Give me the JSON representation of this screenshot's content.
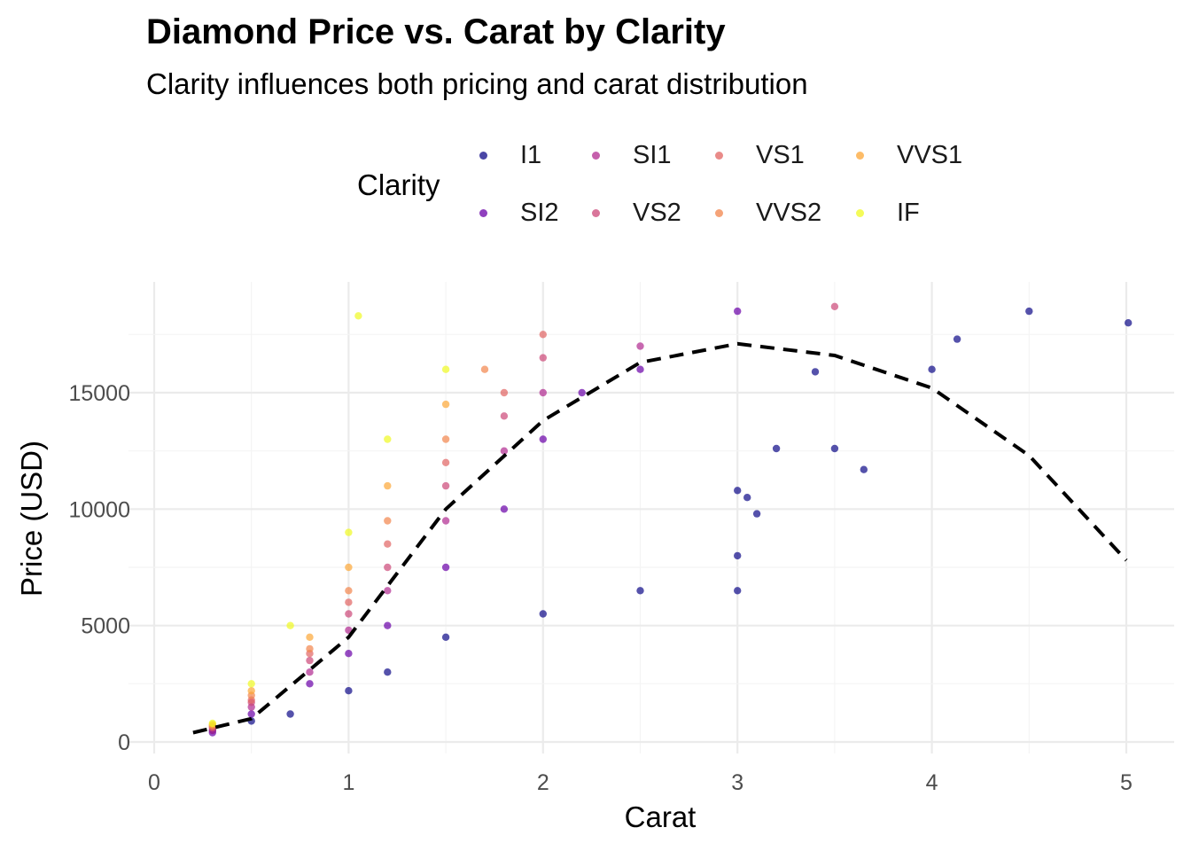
{
  "chart_data": {
    "type": "scatter",
    "title": "Diamond Price vs. Carat by Clarity",
    "subtitle": "Clarity influences both pricing and carat distribution",
    "xlabel": "Carat",
    "ylabel": "Price (USD)",
    "xlim": [
      0,
      5.2
    ],
    "ylim": [
      -200,
      19400
    ],
    "x_ticks": [
      0,
      1,
      2,
      3,
      4,
      5
    ],
    "y_ticks": [
      0,
      5000,
      10000,
      15000
    ],
    "x_tick_labels": [
      "0",
      "1",
      "2",
      "3",
      "4",
      "5"
    ],
    "y_tick_labels": [
      "0",
      "5000",
      "10000",
      "15000"
    ],
    "grid": true,
    "legend": {
      "title": "Clarity",
      "position": "top",
      "entries": [
        "I1",
        "SI2",
        "SI1",
        "VS2",
        "VS1",
        "VVS2",
        "VVS1",
        "IF"
      ]
    },
    "series_colors": {
      "I1": "#0d0887",
      "SI2": "#6a00a8",
      "SI1": "#b12a90",
      "VS2": "#cc4778",
      "VS1": "#e16462",
      "VVS2": "#f2844b",
      "VVS1": "#fca636",
      "IF": "#f0f921"
    },
    "series": [
      {
        "name": "I1",
        "values": [
          [
            0.3,
            500
          ],
          [
            0.5,
            900
          ],
          [
            0.7,
            1200
          ],
          [
            1.0,
            2200
          ],
          [
            1.2,
            3000
          ],
          [
            1.5,
            4500
          ],
          [
            2.0,
            5500
          ],
          [
            2.5,
            6500
          ],
          [
            3.0,
            6500
          ],
          [
            3.0,
            8000
          ],
          [
            3.0,
            10800
          ],
          [
            3.05,
            10500
          ],
          [
            3.1,
            9800
          ],
          [
            3.2,
            12600
          ],
          [
            3.4,
            15900
          ],
          [
            3.5,
            12600
          ],
          [
            3.65,
            11700
          ],
          [
            4.0,
            16000
          ],
          [
            4.13,
            17300
          ],
          [
            4.5,
            18500
          ],
          [
            5.01,
            18000
          ]
        ]
      },
      {
        "name": "SI2",
        "values": [
          [
            0.3,
            400
          ],
          [
            0.5,
            1200
          ],
          [
            0.8,
            2500
          ],
          [
            1.0,
            3800
          ],
          [
            1.2,
            5000
          ],
          [
            1.5,
            7500
          ],
          [
            1.8,
            10000
          ],
          [
            2.0,
            13000
          ],
          [
            2.2,
            15000
          ],
          [
            2.5,
            16000
          ],
          [
            3.0,
            18500
          ]
        ]
      },
      {
        "name": "SI1",
        "values": [
          [
            0.3,
            500
          ],
          [
            0.5,
            1500
          ],
          [
            0.8,
            3000
          ],
          [
            1.0,
            4800
          ],
          [
            1.2,
            6500
          ],
          [
            1.5,
            9500
          ],
          [
            1.8,
            12500
          ],
          [
            2.0,
            15000
          ],
          [
            2.5,
            17000
          ]
        ]
      },
      {
        "name": "VS2",
        "values": [
          [
            0.3,
            600
          ],
          [
            0.5,
            1700
          ],
          [
            0.8,
            3500
          ],
          [
            1.0,
            5500
          ],
          [
            1.2,
            7500
          ],
          [
            1.5,
            11000
          ],
          [
            1.8,
            14000
          ],
          [
            2.0,
            16500
          ],
          [
            3.5,
            18700
          ]
        ]
      },
      {
        "name": "VS1",
        "values": [
          [
            0.3,
            650
          ],
          [
            0.5,
            1800
          ],
          [
            0.8,
            3800
          ],
          [
            1.0,
            6000
          ],
          [
            1.2,
            8500
          ],
          [
            1.5,
            12000
          ],
          [
            1.8,
            15000
          ],
          [
            2.0,
            17500
          ]
        ]
      },
      {
        "name": "VVS2",
        "values": [
          [
            0.3,
            700
          ],
          [
            0.5,
            2000
          ],
          [
            0.8,
            4000
          ],
          [
            1.0,
            6500
          ],
          [
            1.2,
            9500
          ],
          [
            1.5,
            13000
          ],
          [
            1.7,
            16000
          ]
        ]
      },
      {
        "name": "VVS1",
        "values": [
          [
            0.3,
            750
          ],
          [
            0.5,
            2200
          ],
          [
            0.8,
            4500
          ],
          [
            1.0,
            7500
          ],
          [
            1.2,
            11000
          ],
          [
            1.5,
            14500
          ]
        ]
      },
      {
        "name": "IF",
        "values": [
          [
            0.3,
            800
          ],
          [
            0.5,
            2500
          ],
          [
            0.7,
            5000
          ],
          [
            1.0,
            9000
          ],
          [
            1.05,
            18300
          ],
          [
            1.2,
            13000
          ],
          [
            1.5,
            16000
          ]
        ]
      }
    ],
    "trend_line": {
      "style": "dashed",
      "color": "#000000",
      "points": [
        [
          0.2,
          400
        ],
        [
          0.5,
          1000
        ],
        [
          1.0,
          4500
        ],
        [
          1.5,
          10000
        ],
        [
          2.0,
          13800
        ],
        [
          2.5,
          16300
        ],
        [
          3.0,
          17100
        ],
        [
          3.5,
          16600
        ],
        [
          4.0,
          15200
        ],
        [
          4.5,
          12300
        ],
        [
          5.0,
          7800
        ]
      ]
    }
  }
}
